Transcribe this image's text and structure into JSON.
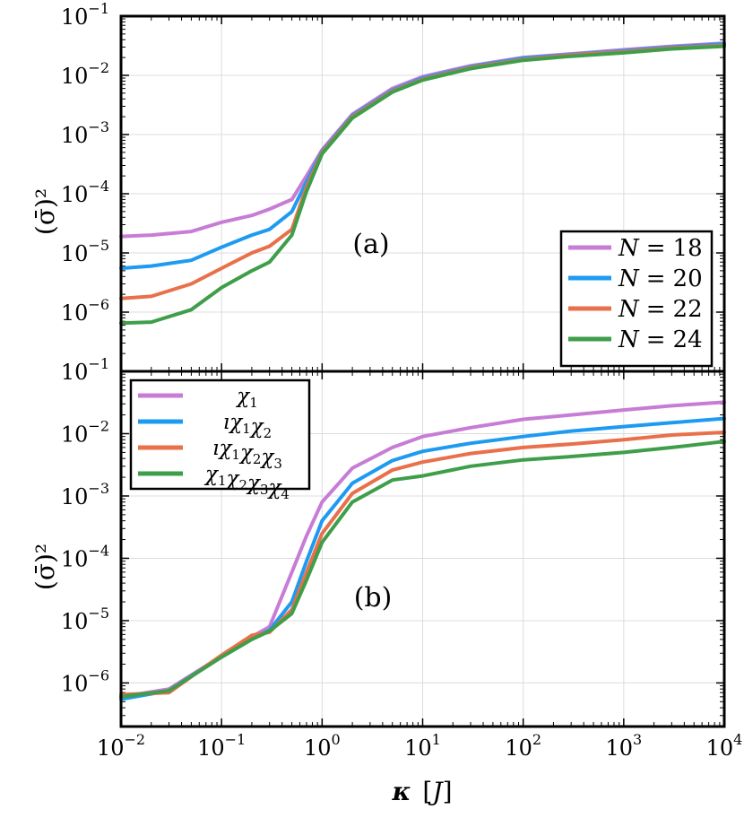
{
  "figure": {
    "xlabel_main": "κ",
    "xlabel_unit": "J",
    "ylabel": "(σ̄)²",
    "x_ticks": [
      {
        "base": "10",
        "exp": "−2"
      },
      {
        "base": "10",
        "exp": "−1"
      },
      {
        "base": "10",
        "exp": "0"
      },
      {
        "base": "10",
        "exp": "1"
      },
      {
        "base": "10",
        "exp": "2"
      },
      {
        "base": "10",
        "exp": "3"
      },
      {
        "base": "10",
        "exp": "4"
      }
    ],
    "y_ticks": [
      {
        "base": "10",
        "exp": "−1"
      },
      {
        "base": "10",
        "exp": "−2"
      },
      {
        "base": "10",
        "exp": "−3"
      },
      {
        "base": "10",
        "exp": "−4"
      },
      {
        "base": "10",
        "exp": "−5"
      },
      {
        "base": "10",
        "exp": "−6"
      }
    ]
  },
  "chart_data": [
    {
      "type": "line",
      "panel_label": "(a)",
      "xscale": "log",
      "yscale": "log",
      "xlim": [
        0.01,
        10000
      ],
      "ylim": [
        1e-07,
        0.1
      ],
      "xlabel": "κ [J]",
      "ylabel": "(σ̄)²",
      "grid": true,
      "legend_position": "bottom-right",
      "series": [
        {
          "name": "N = 18",
          "label_var": "N",
          "label_eq": "=",
          "label_val": "18",
          "color": "#C77CD6",
          "points": [
            [
              0.01,
              1.9e-05
            ],
            [
              0.02,
              2e-05
            ],
            [
              0.05,
              2.3e-05
            ],
            [
              0.1,
              3.3e-05
            ],
            [
              0.2,
              4.3e-05
            ],
            [
              0.3,
              5.5e-05
            ],
            [
              0.5,
              8e-05
            ],
            [
              0.7,
              0.0002
            ],
            [
              1,
              0.00055
            ],
            [
              2,
              0.0022
            ],
            [
              5,
              0.006
            ],
            [
              10,
              0.0095
            ],
            [
              30,
              0.0145
            ],
            [
              100,
              0.02
            ],
            [
              300,
              0.023
            ],
            [
              1000,
              0.027
            ],
            [
              3000,
              0.031
            ],
            [
              10000,
              0.035
            ]
          ]
        },
        {
          "name": "N = 20",
          "label_var": "N",
          "label_eq": "=",
          "label_val": "20",
          "color": "#1E9BF0",
          "points": [
            [
              0.01,
              5.5e-06
            ],
            [
              0.02,
              6e-06
            ],
            [
              0.05,
              7.5e-06
            ],
            [
              0.1,
              1.25e-05
            ],
            [
              0.2,
              2e-05
            ],
            [
              0.3,
              2.5e-05
            ],
            [
              0.5,
              5e-05
            ],
            [
              0.7,
              0.00016
            ],
            [
              1,
              0.00052
            ],
            [
              2,
              0.0021
            ],
            [
              5,
              0.0056
            ],
            [
              10,
              0.009
            ],
            [
              30,
              0.014
            ],
            [
              100,
              0.0195
            ],
            [
              300,
              0.0225
            ],
            [
              1000,
              0.026
            ],
            [
              3000,
              0.03
            ],
            [
              10000,
              0.0335
            ]
          ]
        },
        {
          "name": "N = 22",
          "label_var": "N",
          "label_eq": "=",
          "label_val": "22",
          "color": "#E8704A",
          "points": [
            [
              0.01,
              1.7e-06
            ],
            [
              0.02,
              1.85e-06
            ],
            [
              0.05,
              3e-06
            ],
            [
              0.1,
              5.5e-06
            ],
            [
              0.2,
              1e-05
            ],
            [
              0.3,
              1.3e-05
            ],
            [
              0.5,
              2.5e-05
            ],
            [
              0.7,
              0.00013
            ],
            [
              1,
              0.0005
            ],
            [
              2,
              0.002
            ],
            [
              5,
              0.0054
            ],
            [
              10,
              0.0086
            ],
            [
              30,
              0.0135
            ],
            [
              100,
              0.0185
            ],
            [
              300,
              0.022
            ],
            [
              1000,
              0.025
            ],
            [
              3000,
              0.029
            ],
            [
              10000,
              0.032
            ]
          ]
        },
        {
          "name": "N = 24",
          "label_var": "N",
          "label_eq": "=",
          "label_val": "24",
          "color": "#3E9E49",
          "points": [
            [
              0.01,
              6.5e-07
            ],
            [
              0.02,
              6.8e-07
            ],
            [
              0.05,
              1.1e-06
            ],
            [
              0.1,
              2.6e-06
            ],
            [
              0.2,
              5e-06
            ],
            [
              0.3,
              7e-06
            ],
            [
              0.5,
              2e-05
            ],
            [
              0.7,
              0.00011
            ],
            [
              1,
              0.00047
            ],
            [
              2,
              0.0019
            ],
            [
              5,
              0.0052
            ],
            [
              10,
              0.0083
            ],
            [
              30,
              0.013
            ],
            [
              100,
              0.018
            ],
            [
              300,
              0.021
            ],
            [
              1000,
              0.024
            ],
            [
              3000,
              0.028
            ],
            [
              10000,
              0.031
            ]
          ]
        }
      ]
    },
    {
      "type": "line",
      "panel_label": "(b)",
      "xscale": "log",
      "yscale": "log",
      "xlim": [
        0.01,
        10000
      ],
      "ylim": [
        2e-07,
        0.1
      ],
      "xlabel": "κ [J]",
      "ylabel": "(σ̄)²",
      "grid": true,
      "legend_position": "top-left",
      "series": [
        {
          "name": "χ1",
          "label_pre": "",
          "label_terms": [
            "1"
          ],
          "color": "#C77CD6",
          "points": [
            [
              0.01,
              6e-07
            ],
            [
              0.03,
              8e-07
            ],
            [
              0.1,
              2.7e-06
            ],
            [
              0.2,
              5.5e-06
            ],
            [
              0.3,
              8e-06
            ],
            [
              0.5,
              6e-05
            ],
            [
              0.7,
              0.00023
            ],
            [
              1,
              0.0008
            ],
            [
              2,
              0.0028
            ],
            [
              5,
              0.006
            ],
            [
              10,
              0.009
            ],
            [
              30,
              0.0125
            ],
            [
              100,
              0.017
            ],
            [
              300,
              0.02
            ],
            [
              1000,
              0.024
            ],
            [
              3000,
              0.028
            ],
            [
              10000,
              0.032
            ]
          ]
        },
        {
          "name": "ıχ1χ2",
          "label_pre": "ı",
          "label_terms": [
            "1",
            "2"
          ],
          "color": "#1E9BF0",
          "points": [
            [
              0.01,
              5.5e-07
            ],
            [
              0.03,
              7.5e-07
            ],
            [
              0.1,
              2.7e-06
            ],
            [
              0.2,
              5.3e-06
            ],
            [
              0.3,
              7e-06
            ],
            [
              0.5,
              2e-05
            ],
            [
              0.7,
              9e-05
            ],
            [
              1,
              0.0004
            ],
            [
              2,
              0.0016
            ],
            [
              5,
              0.0037
            ],
            [
              10,
              0.0052
            ],
            [
              30,
              0.007
            ],
            [
              100,
              0.009
            ],
            [
              300,
              0.011
            ],
            [
              1000,
              0.013
            ],
            [
              3000,
              0.015
            ],
            [
              10000,
              0.0175
            ]
          ]
        },
        {
          "name": "ıχ1χ2χ3",
          "label_pre": "ı",
          "label_terms": [
            "1",
            "2",
            "3"
          ],
          "color": "#E8704A",
          "points": [
            [
              0.01,
              6.5e-07
            ],
            [
              0.03,
              7e-07
            ],
            [
              0.1,
              2.8e-06
            ],
            [
              0.2,
              5.8e-06
            ],
            [
              0.3,
              6.5e-06
            ],
            [
              0.5,
              1.5e-05
            ],
            [
              0.7,
              6e-05
            ],
            [
              1,
              0.00025
            ],
            [
              2,
              0.0011
            ],
            [
              5,
              0.0026
            ],
            [
              10,
              0.0035
            ],
            [
              30,
              0.0048
            ],
            [
              100,
              0.006
            ],
            [
              300,
              0.0068
            ],
            [
              1000,
              0.008
            ],
            [
              3000,
              0.0095
            ],
            [
              10000,
              0.0105
            ]
          ]
        },
        {
          "name": "χ1χ2χ3χ4",
          "label_pre": "",
          "label_terms": [
            "1",
            "2",
            "3",
            "4"
          ],
          "color": "#3E9E49",
          "points": [
            [
              0.01,
              6e-07
            ],
            [
              0.03,
              7.5e-07
            ],
            [
              0.1,
              2.6e-06
            ],
            [
              0.2,
              5e-06
            ],
            [
              0.3,
              6.8e-06
            ],
            [
              0.5,
              1.3e-05
            ],
            [
              0.7,
              4.5e-05
            ],
            [
              1,
              0.00018
            ],
            [
              2,
              0.0008
            ],
            [
              5,
              0.0018
            ],
            [
              10,
              0.0021
            ],
            [
              30,
              0.003
            ],
            [
              100,
              0.0038
            ],
            [
              300,
              0.0043
            ],
            [
              1000,
              0.005
            ],
            [
              3000,
              0.006
            ],
            [
              10000,
              0.0075
            ]
          ]
        }
      ]
    }
  ]
}
